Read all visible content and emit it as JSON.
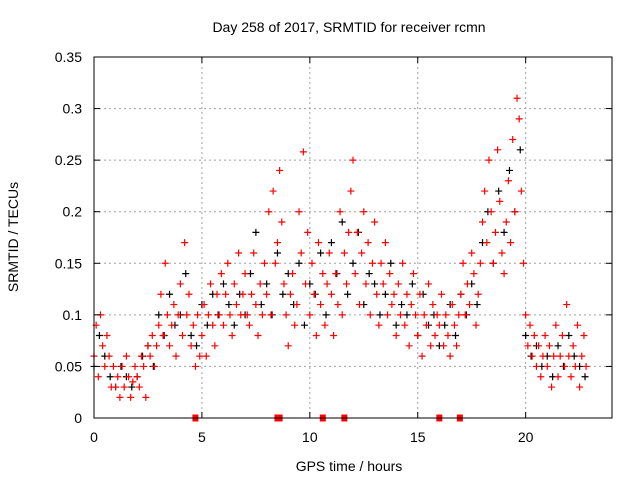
{
  "chart_data": {
    "type": "scatter",
    "title": "Day 258 of 2017, SRMTID for receiver rcmn",
    "xlabel": "GPS time / hours",
    "ylabel": "SRMTID / TECUs",
    "xlim": [
      0,
      24
    ],
    "ylim": [
      0,
      0.35
    ],
    "xticks": [
      "0",
      "5",
      "10",
      "15",
      "20"
    ],
    "xtick_values": [
      0,
      5,
      10,
      15,
      20
    ],
    "yticks": [
      "0",
      "0.05",
      "0.1",
      "0.15",
      "0.2",
      "0.25",
      "0.3",
      "0.35"
    ],
    "ytick_values": [
      0,
      0.05,
      0.1,
      0.15,
      0.2,
      0.25,
      0.3,
      0.35
    ],
    "grid": true,
    "series": [
      {
        "name": "black",
        "color": "#000000",
        "marker": "plus",
        "x_start": 0,
        "x_step": 0.25,
        "y": [
          0.05,
          0.08,
          0.06,
          0.04,
          0.03,
          0.05,
          0.04,
          0.03,
          0.04,
          0.06,
          0.07,
          0.05,
          0.1,
          0.08,
          0.12,
          0.09,
          0.1,
          0.14,
          0.08,
          0.07,
          0.11,
          0.09,
          0.12,
          0.1,
          0.13,
          0.11,
          0.09,
          0.12,
          0.1,
          0.14,
          0.18,
          0.11,
          0.13,
          0.1,
          0.16,
          0.12,
          0.14,
          0.11,
          0.15,
          0.09,
          0.13,
          0.12,
          0.16,
          0.1,
          0.17,
          0.14,
          0.19,
          0.12,
          0.15,
          0.18,
          0.11,
          0.14,
          0.13,
          0.1,
          0.12,
          0.15,
          0.09,
          0.11,
          0.1,
          0.13,
          0.08,
          0.12,
          0.09,
          0.1,
          0.07,
          0.09,
          0.11,
          0.08,
          0.12,
          0.1,
          0.13,
          0.11,
          0.17,
          0.2,
          0.15,
          0.22,
          0.18,
          0.24,
          0.2,
          0.26,
          0.08,
          0.06,
          0.07,
          0.05,
          0.06,
          0.04,
          0.07,
          0.05,
          0.08,
          0.06,
          0.05,
          0.04
        ]
      },
      {
        "name": "red",
        "color": "#ff0000",
        "marker": "plus",
        "x_start": 0,
        "x_step": 0.1,
        "y": [
          0.06,
          0.09,
          0.04,
          0.1,
          0.07,
          0.05,
          0.08,
          0.06,
          0.03,
          0.05,
          0.03,
          0.04,
          0.02,
          0.05,
          0.03,
          0.06,
          0.04,
          0.02,
          0.035,
          0.05,
          0.04,
          0.03,
          0.06,
          0.05,
          0.02,
          0.07,
          0.06,
          0.08,
          0.05,
          0.07,
          0.09,
          0.12,
          0.08,
          0.15,
          0.1,
          0.07,
          0.09,
          0.11,
          0.06,
          0.1,
          0.13,
          0.08,
          0.17,
          0.1,
          0.12,
          0.07,
          0.09,
          0.05,
          0.1,
          0.06,
          0.08,
          0.11,
          0.06,
          0.1,
          0.13,
          0.09,
          0.07,
          0.12,
          0.1,
          0.14,
          0.09,
          0.12,
          0.15,
          0.1,
          0.08,
          0.13,
          0.11,
          0.16,
          0.1,
          0.12,
          0.14,
          0.1,
          0.09,
          0.12,
          0.16,
          0.11,
          0.08,
          0.13,
          0.1,
          0.15,
          0.12,
          0.2,
          0.1,
          0.22,
          0.15,
          0.17,
          0.24,
          0.19,
          0.13,
          0.1,
          0.07,
          0.12,
          0.14,
          0.09,
          0.11,
          0.2,
          0.16,
          0.258,
          0.13,
          0.18,
          0.1,
          0.15,
          0.12,
          0.08,
          0.17,
          0.11,
          0.14,
          0.09,
          0.13,
          0.16,
          0.12,
          0.08,
          0.14,
          0.11,
          0.2,
          0.1,
          0.16,
          0.13,
          0.18,
          0.22,
          0.25,
          0.14,
          0.18,
          0.11,
          0.16,
          0.2,
          0.13,
          0.17,
          0.1,
          0.15,
          0.19,
          0.12,
          0.09,
          0.15,
          0.13,
          0.17,
          0.1,
          0.14,
          0.11,
          0.12,
          0.08,
          0.13,
          0.1,
          0.15,
          0.09,
          0.12,
          0.07,
          0.11,
          0.14,
          0.1,
          0.08,
          0.12,
          0.06,
          0.1,
          0.09,
          0.13,
          0.07,
          0.11,
          0.08,
          0.1,
          0.09,
          0.12,
          0.07,
          0.1,
          0.08,
          0.06,
          0.11,
          0.09,
          0.07,
          0.1,
          0.12,
          0.15,
          0.1,
          0.13,
          0.11,
          0.16,
          0.14,
          0.09,
          0.12,
          0.15,
          0.19,
          0.22,
          0.17,
          0.25,
          0.2,
          0.15,
          0.18,
          0.26,
          0.21,
          0.16,
          0.14,
          0.19,
          0.23,
          0.17,
          0.27,
          0.2,
          0.31,
          0.29,
          0.22,
          0.15,
          0.1,
          0.07,
          0.09,
          0.06,
          0.08,
          0.05,
          0.07,
          0.04,
          0.06,
          0.08,
          0.05,
          0.07,
          0.03,
          0.06,
          0.09,
          0.04,
          0.06,
          0.08,
          0.05,
          0.11,
          0.06,
          0.04,
          0.07,
          0.05,
          0.09,
          0.03,
          0.06,
          0.08,
          0.05
        ]
      }
    ],
    "axis_markers": {
      "color": "#ff0000",
      "x": [
        4.7,
        8.5,
        8.6,
        10.6,
        11.6,
        16.0,
        16.95
      ],
      "y": 0
    }
  }
}
